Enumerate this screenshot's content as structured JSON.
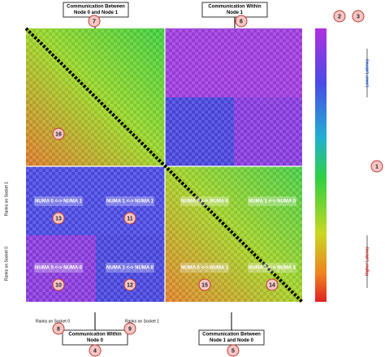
{
  "callouts": [
    {
      "number": 7,
      "lines": [
        "Communication Between",
        "Node 0 and Node 1"
      ]
    },
    {
      "number": 6,
      "lines": [
        "Communication Within",
        "Node 1"
      ]
    },
    {
      "number": 4,
      "lines": [
        "Communication Within",
        "Node 0"
      ]
    },
    {
      "number": 5,
      "lines": [
        "Communication Between",
        "Node 1 and Node 0"
      ]
    }
  ],
  "colorbar": {
    "numbers": [
      2,
      3,
      1
    ],
    "top_label": "Lower Latency",
    "bottom_label": "Higher Latency"
  },
  "axis_labels": {
    "bottom_left": "Ranks on Socket 0",
    "bottom_right": "Ranks on Socket 1",
    "left_upper": "Ranks on Socket 1",
    "left_lower": "Ranks on Socket 0",
    "bottom_markers": [
      8,
      9
    ]
  },
  "regions": [
    {
      "number": 16
    },
    {
      "number": 13,
      "label": "NUMA 0 <-> NUMA 1"
    },
    {
      "number": 11,
      "label": "NUMA 1 <-> NUMA 1"
    },
    {
      "label": "NUMA 0 <-> NUMA 0"
    },
    {
      "label": "NUMA 1 <-> NUMA 0"
    },
    {
      "number": 10,
      "label": "NUMA 0 <-> NUMA 0"
    },
    {
      "number": 12,
      "label": "NUMA 1 <-> NUMA 0"
    },
    {
      "number": 15,
      "label": "NUMA 0 <-> NUMA 1"
    },
    {
      "number": 14,
      "label": "NUMA 1 <-> NUMA 1"
    }
  ]
}
